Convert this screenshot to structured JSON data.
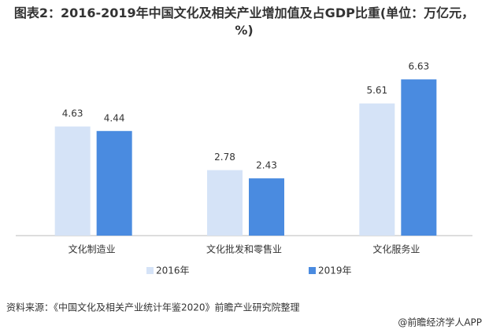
{
  "chart_data": {
    "type": "bar",
    "title": "图表2：2016-2019年中国文化及相关产业增加值及占GDP比重(单位：万亿元，%)",
    "categories": [
      "文化制造业",
      "文化批发和零售业",
      "文化服务业"
    ],
    "series": [
      {
        "name": "2016年",
        "color": "#d5e3f7",
        "values": [
          4.63,
          2.78,
          5.61
        ]
      },
      {
        "name": "2019年",
        "color": "#4a8be0",
        "values": [
          4.44,
          2.43,
          6.63
        ]
      }
    ],
    "source": "资料来源：《中国文化及相关产业统计年鉴2020》前瞻产业研究院整理",
    "footer": "@前瞻经济学人APP"
  }
}
